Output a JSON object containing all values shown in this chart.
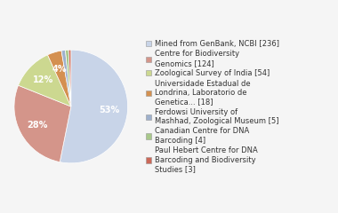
{
  "labels": [
    "Mined from GenBank, NCBI [236]",
    "Centre for Biodiversity\nGenomics [124]",
    "Zoological Survey of India [54]",
    "Universidade Estadual de\nLondrina, Laboratorio de\nGenetica... [18]",
    "Ferdowsi University of\nMashhad, Zoological Museum [5]",
    "Canadian Centre for DNA\nBarcoding [4]",
    "Paul Hebert Centre for DNA\nBarcoding and Biodiversity\nStudies [3]"
  ],
  "values": [
    236,
    124,
    54,
    18,
    5,
    4,
    3
  ],
  "colors": [
    "#c8d4e8",
    "#d4958a",
    "#ccd890",
    "#d49050",
    "#9eb0cc",
    "#a8c88a",
    "#cc6858"
  ],
  "figsize": [
    3.8,
    2.4
  ],
  "dpi": 100,
  "background_color": "#f5f5f5",
  "text_color": "#333333",
  "legend_fontsize": 6.0,
  "autopct_fontsize": 7.0,
  "pct_threshold": 1.5
}
